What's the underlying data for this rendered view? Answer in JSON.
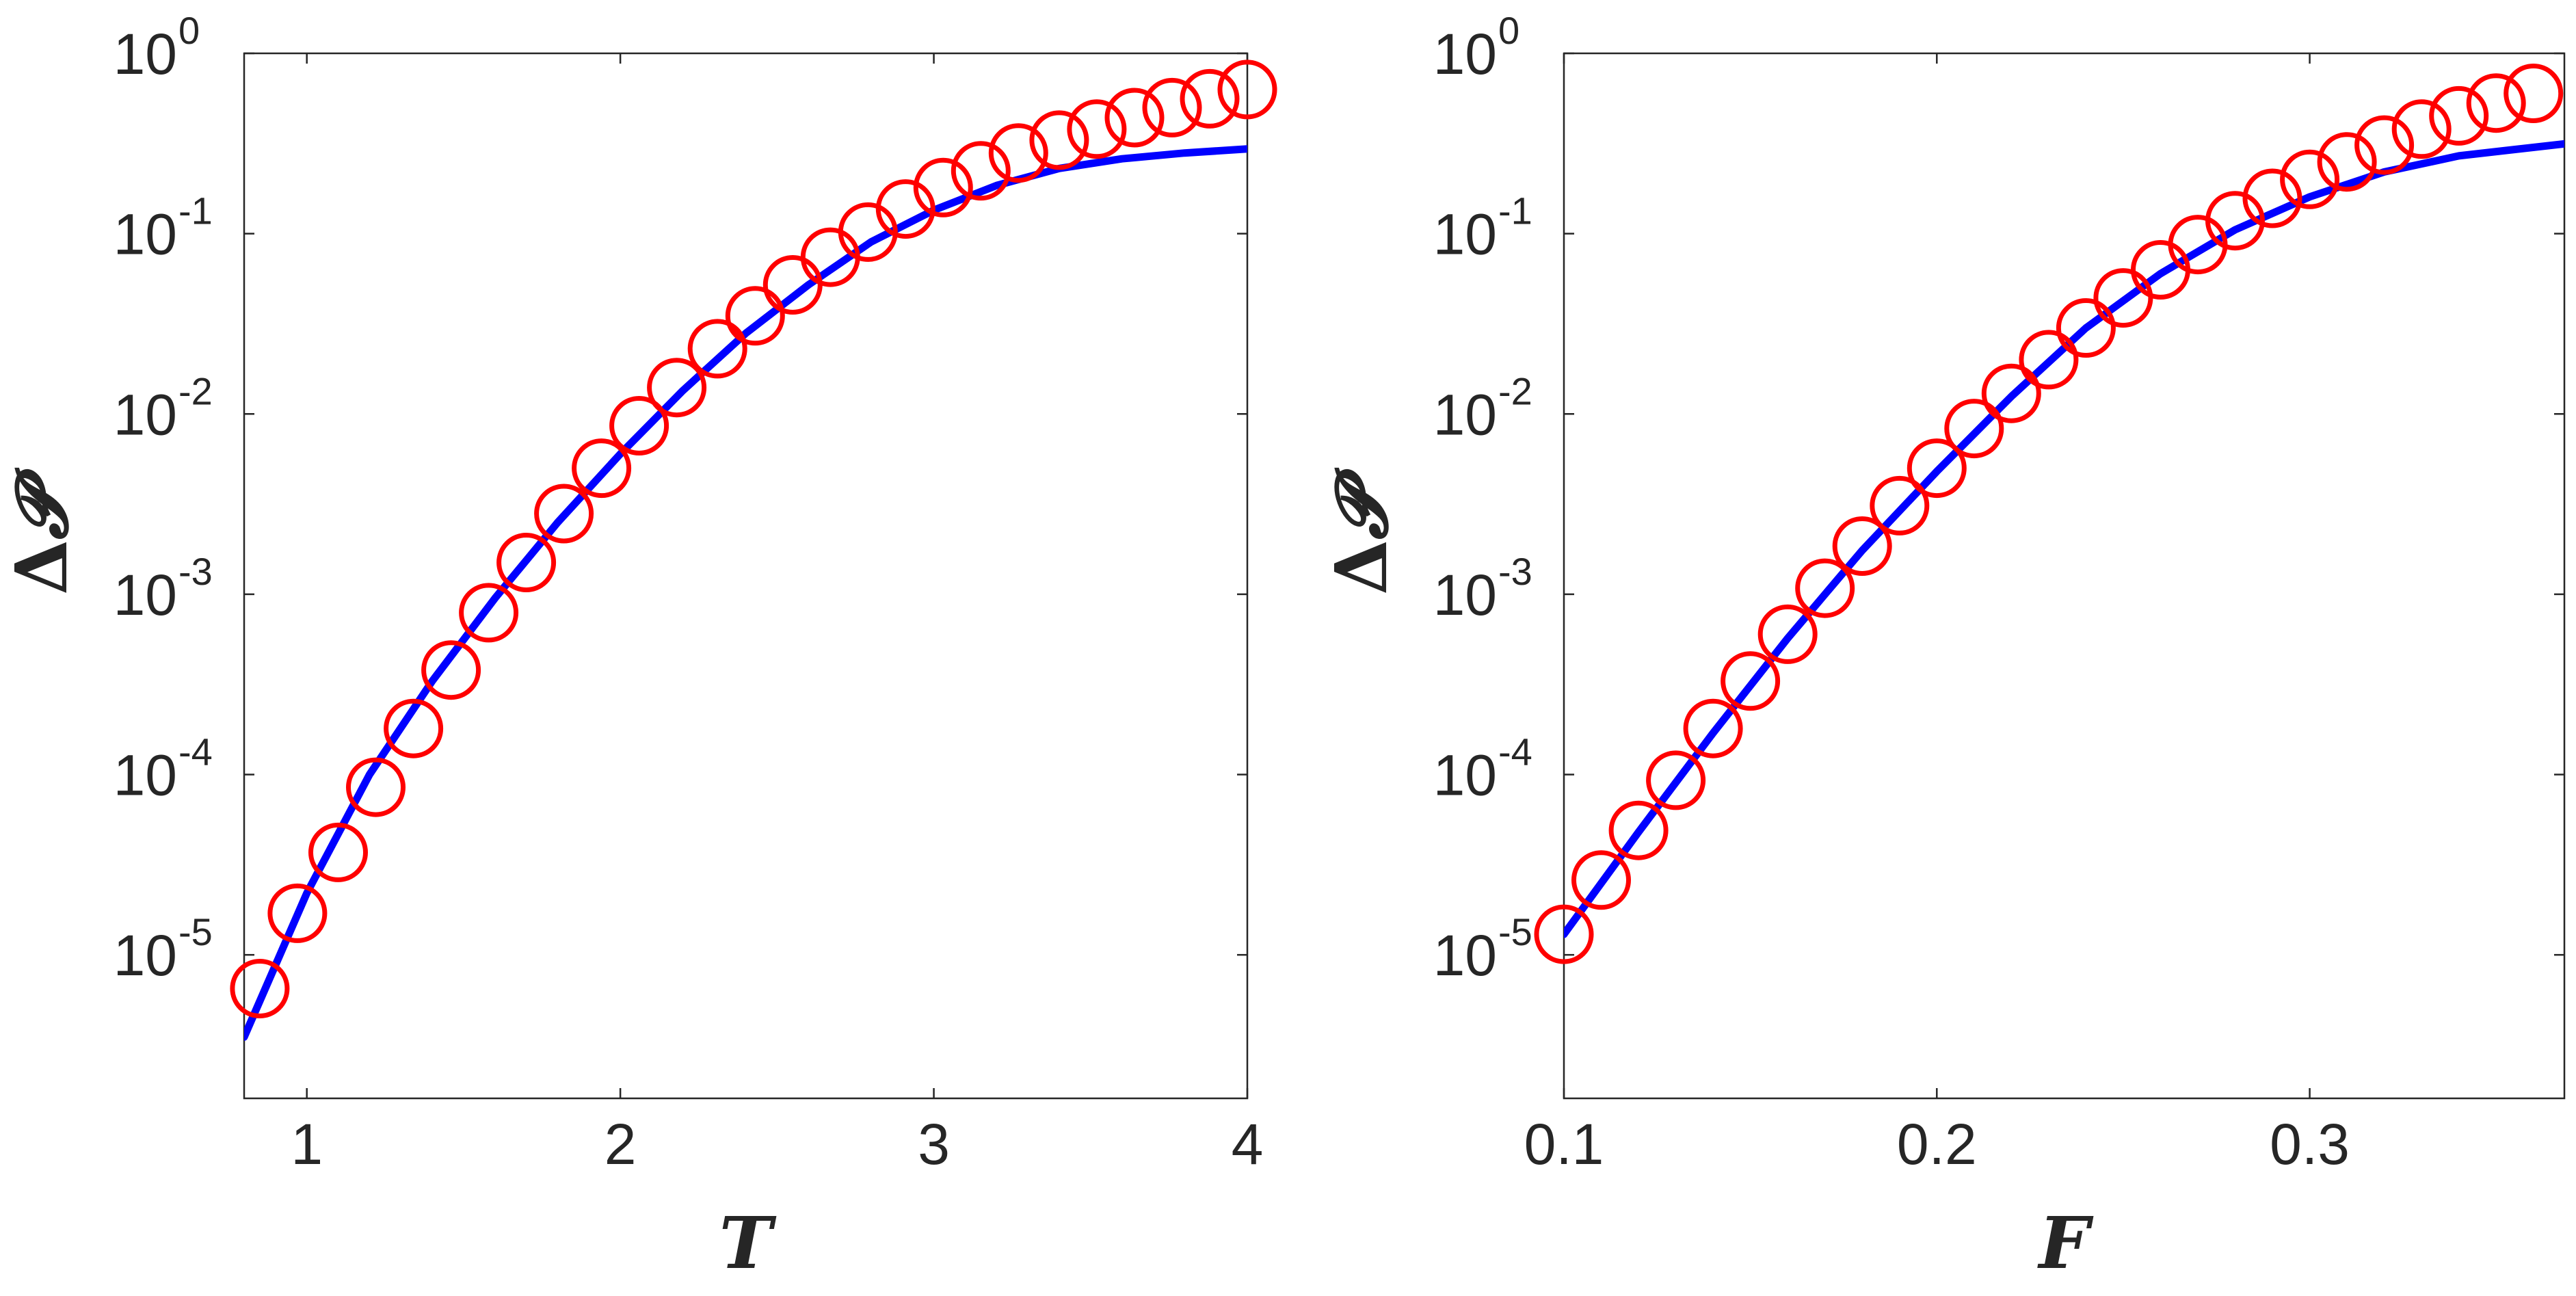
{
  "chart_data": [
    {
      "type": "scatter",
      "xlabel": "T",
      "ylabel": "ΔP",
      "ylabel_delta": "Δ",
      "ylabel_script": "𝓟",
      "xlim": [
        0.8,
        4.0
      ],
      "ylim": [
        1.6e-06,
        1.0
      ],
      "y_scale": "log",
      "grid": false,
      "xticks": [
        1,
        2,
        3,
        4
      ],
      "xtick_labels": [
        "1",
        "2",
        "3",
        "4"
      ],
      "yticks_exp": [
        0,
        -1,
        -2,
        -3,
        -4,
        -5
      ],
      "ytick_base": "10",
      "ytick_exponents": [
        "0",
        "-1",
        "-2",
        "-3",
        "-4",
        "-5"
      ],
      "series": [
        {
          "style": "markers",
          "marker": "circle",
          "color": "#ff0000",
          "points": [
            [
              0.85,
              6.5e-06
            ],
            [
              0.97,
              1.7e-05
            ],
            [
              1.1,
              3.7e-05
            ],
            [
              1.22,
              8.5e-05
            ],
            [
              1.34,
              0.00018
            ],
            [
              1.46,
              0.00038
            ],
            [
              1.58,
              0.00079
            ],
            [
              1.7,
              0.0015
            ],
            [
              1.82,
              0.0028
            ],
            [
              1.94,
              0.005
            ],
            [
              2.06,
              0.0086
            ],
            [
              2.18,
              0.014
            ],
            [
              2.31,
              0.023
            ],
            [
              2.43,
              0.035
            ],
            [
              2.55,
              0.052
            ],
            [
              2.67,
              0.074
            ],
            [
              2.79,
              0.102
            ],
            [
              2.91,
              0.137
            ],
            [
              3.03,
              0.18
            ],
            [
              3.15,
              0.223
            ],
            [
              3.27,
              0.28
            ],
            [
              3.4,
              0.33
            ],
            [
              3.52,
              0.38
            ],
            [
              3.64,
              0.44
            ],
            [
              3.76,
              0.5
            ],
            [
              3.88,
              0.56
            ],
            [
              4.0,
              0.63
            ]
          ]
        },
        {
          "style": "line",
          "color": "#0000ff",
          "points": [
            [
              0.8,
              3.5e-06
            ],
            [
              1.0,
              2.2e-05
            ],
            [
              1.2,
              0.0001
            ],
            [
              1.4,
              0.00033
            ],
            [
              1.6,
              0.00095
            ],
            [
              1.8,
              0.0025
            ],
            [
              2.0,
              0.006
            ],
            [
              2.2,
              0.0135
            ],
            [
              2.4,
              0.028
            ],
            [
              2.6,
              0.052
            ],
            [
              2.8,
              0.09
            ],
            [
              3.0,
              0.135
            ],
            [
              3.2,
              0.185
            ],
            [
              3.4,
              0.23
            ],
            [
              3.6,
              0.26
            ],
            [
              3.8,
              0.28
            ],
            [
              4.0,
              0.295
            ]
          ]
        }
      ]
    },
    {
      "type": "scatter",
      "xlabel": "F",
      "ylabel": "ΔP",
      "ylabel_delta": "Δ",
      "ylabel_script": "𝓟",
      "xlim": [
        0.1,
        0.3683
      ],
      "ylim": [
        1.6e-06,
        1.0
      ],
      "y_scale": "log",
      "grid": false,
      "xticks": [
        0.1,
        0.2,
        0.3
      ],
      "xtick_labels": [
        "0.1",
        "0.2",
        "0.3"
      ],
      "yticks_exp": [
        0,
        -1,
        -2,
        -3,
        -4,
        -5
      ],
      "ytick_base": "10",
      "ytick_exponents": [
        "0",
        "-1",
        "-2",
        "-3",
        "-4",
        "-5"
      ],
      "series": [
        {
          "style": "markers",
          "marker": "circle",
          "color": "#ff0000",
          "points": [
            [
              0.1,
              1.3e-05
            ],
            [
              0.11,
              2.6e-05
            ],
            [
              0.12,
              4.9e-05
            ],
            [
              0.13,
              9.3e-05
            ],
            [
              0.14,
              0.00018
            ],
            [
              0.15,
              0.00033
            ],
            [
              0.16,
              0.0006
            ],
            [
              0.17,
              0.00108
            ],
            [
              0.18,
              0.00185
            ],
            [
              0.19,
              0.0031
            ],
            [
              0.2,
              0.005
            ],
            [
              0.21,
              0.0083
            ],
            [
              0.22,
              0.013
            ],
            [
              0.23,
              0.02
            ],
            [
              0.24,
              0.03
            ],
            [
              0.25,
              0.044
            ],
            [
              0.26,
              0.063
            ],
            [
              0.27,
              0.087
            ],
            [
              0.28,
              0.118
            ],
            [
              0.29,
              0.157
            ],
            [
              0.3,
              0.2
            ],
            [
              0.31,
              0.25
            ],
            [
              0.32,
              0.31
            ],
            [
              0.33,
              0.38
            ],
            [
              0.34,
              0.45
            ],
            [
              0.35,
              0.53
            ],
            [
              0.36,
              0.6
            ]
          ]
        },
        {
          "style": "line",
          "color": "#0000ff",
          "points": [
            [
              0.1,
              1.3e-05
            ],
            [
              0.12,
              4.8e-05
            ],
            [
              0.14,
              0.00017
            ],
            [
              0.16,
              0.00057
            ],
            [
              0.18,
              0.00175
            ],
            [
              0.2,
              0.0048
            ],
            [
              0.22,
              0.0125
            ],
            [
              0.24,
              0.03
            ],
            [
              0.26,
              0.06
            ],
            [
              0.28,
              0.105
            ],
            [
              0.3,
              0.16
            ],
            [
              0.32,
              0.22
            ],
            [
              0.34,
              0.27
            ],
            [
              0.3683,
              0.315
            ]
          ]
        }
      ]
    }
  ]
}
